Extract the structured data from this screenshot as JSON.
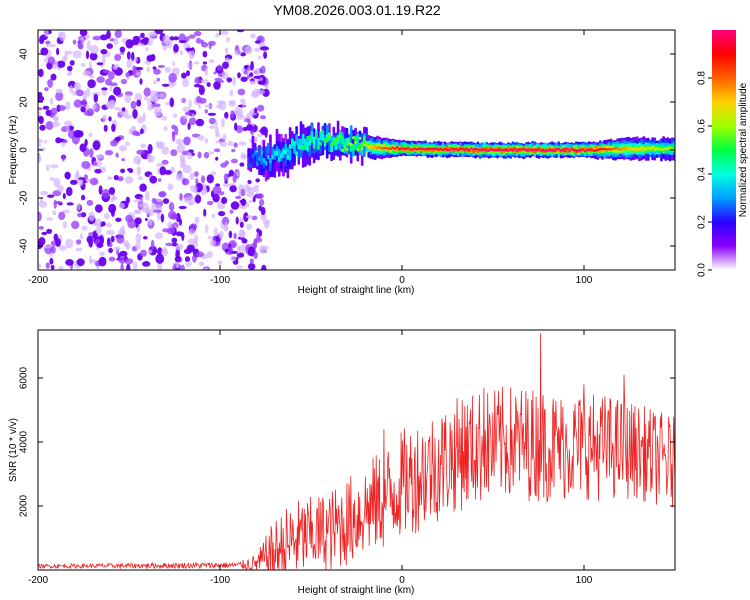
{
  "title": "YM08.2026.003.01.19.R22",
  "chart_data": [
    {
      "type": "heatmap",
      "name": "spectrogram",
      "xlabel": "Height of straight line (km)",
      "ylabel": "Frequency (Hz)",
      "xlim": [
        -200,
        150
      ],
      "ylim": [
        -50,
        50
      ],
      "xticks": [
        -200,
        -100,
        0,
        100
      ],
      "yticks": [
        -40,
        -20,
        0,
        20,
        40
      ],
      "noise_region": {
        "x_range": [
          -200,
          -80
        ],
        "amplitude_range": [
          0.0,
          0.12
        ]
      },
      "signal_track": [
        {
          "x": -85,
          "freq_center": -3,
          "freq_halfwidth": 4,
          "amplitude": 0.25
        },
        {
          "x": -75,
          "freq_center": -4,
          "freq_halfwidth": 5,
          "amplitude": 0.35
        },
        {
          "x": -65,
          "freq_center": -1,
          "freq_halfwidth": 5,
          "amplitude": 0.4
        },
        {
          "x": -55,
          "freq_center": 3,
          "freq_halfwidth": 5,
          "amplitude": 0.45
        },
        {
          "x": -45,
          "freq_center": 4,
          "freq_halfwidth": 4,
          "amplitude": 0.5
        },
        {
          "x": -35,
          "freq_center": 3,
          "freq_halfwidth": 4,
          "amplitude": 0.55
        },
        {
          "x": -25,
          "freq_center": 2,
          "freq_halfwidth": 3,
          "amplitude": 0.6
        },
        {
          "x": -15,
          "freq_center": 1,
          "freq_halfwidth": 3,
          "amplitude": 0.75
        },
        {
          "x": 0,
          "freq_center": 0.5,
          "freq_halfwidth": 2,
          "amplitude": 0.95
        },
        {
          "x": 50,
          "freq_center": 0,
          "freq_halfwidth": 2,
          "amplitude": 1.0
        },
        {
          "x": 100,
          "freq_center": 0,
          "freq_halfwidth": 2,
          "amplitude": 1.0
        },
        {
          "x": 125,
          "freq_center": 0.5,
          "freq_halfwidth": 3,
          "amplitude": 0.7
        },
        {
          "x": 150,
          "freq_center": 0.5,
          "freq_halfwidth": 3,
          "amplitude": 0.6
        }
      ],
      "colorbar": {
        "label": "Normalized spectral amplitude",
        "range": [
          0.0,
          1.0
        ],
        "ticks": [
          "0.0",
          "0.2",
          "0.4",
          "0.6",
          "0.8"
        ],
        "colors": [
          "#ffffff",
          "#8a00ff",
          "#2a00ff",
          "#00a0ff",
          "#00ffe0",
          "#00ff40",
          "#a0ff00",
          "#ffd000",
          "#ff6000",
          "#ff0000",
          "#ff0080"
        ]
      }
    },
    {
      "type": "line",
      "name": "snr",
      "xlabel": "Height of straight line (km)",
      "ylabel": "SNR (10 * v/v)",
      "xlim": [
        -200,
        150
      ],
      "ylim": [
        0,
        7500
      ],
      "xticks": [
        -200,
        -100,
        0,
        100
      ],
      "yticks": [
        2000,
        4000,
        6000
      ],
      "color": "#ee2222",
      "envelope": {
        "x": [
          -200,
          -90,
          -80,
          -70,
          -60,
          -50,
          -40,
          -30,
          -20,
          -10,
          0,
          10,
          20,
          30,
          40,
          50,
          60,
          70,
          80,
          90,
          100,
          110,
          120,
          130,
          140,
          150
        ],
        "mean": [
          120,
          150,
          200,
          500,
          900,
          1100,
          1200,
          1500,
          1900,
          2200,
          2700,
          3000,
          3300,
          3600,
          3800,
          3900,
          4000,
          3950,
          3900,
          3850,
          3900,
          3850,
          3800,
          3700,
          3500,
          3300
        ],
        "spread": [
          60,
          100,
          300,
          1100,
          1300,
          1200,
          1300,
          1400,
          1500,
          1600,
          1700,
          1800,
          1800,
          1800,
          1800,
          1800,
          1800,
          1800,
          1800,
          1700,
          1700,
          1700,
          1600,
          1500,
          1500,
          1500
        ]
      },
      "spikes": [
        {
          "x": -10,
          "y": 4400
        },
        {
          "x": 33,
          "y": 5300
        },
        {
          "x": 45,
          "y": 5700
        },
        {
          "x": 76,
          "y": 7400
        },
        {
          "x": 100,
          "y": 5800
        },
        {
          "x": 122,
          "y": 6100
        }
      ]
    }
  ]
}
